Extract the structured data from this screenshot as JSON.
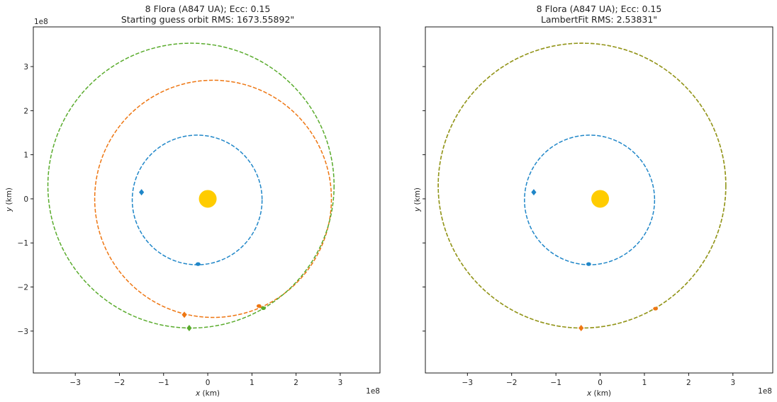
{
  "chart_data": [
    {
      "type": "scatter",
      "title_line1": "8 Flora (A847 UA); Ecc: 0.15",
      "title_line2": "Starting guess orbit RMS: 1673.55892\"",
      "xlabel_var": "x",
      "xlabel_unit": " (km)",
      "ylabel_var": "y",
      "ylabel_unit": " (km)",
      "x_exponent": "1e8",
      "y_exponent": "1e8",
      "xlim": [
        -3.95,
        3.9
      ],
      "ylim": [
        -3.95,
        3.9
      ],
      "xticks": [
        -3,
        -2,
        -1,
        0,
        1,
        2,
        3
      ],
      "xtick_labels": [
        "−3",
        "−2",
        "−1",
        "0",
        "1",
        "2",
        "3"
      ],
      "yticks": [
        -3,
        -2,
        -1,
        0,
        1,
        2,
        3
      ],
      "ytick_labels": [
        "−3",
        "−2",
        "−1",
        "0",
        "1",
        "2",
        "3"
      ],
      "show_ytick_labels": true,
      "grid": false,
      "sun": {
        "x": 0,
        "y": 0,
        "color": "#ffcc00"
      },
      "orbits": [
        {
          "cx": -0.24,
          "cy": -0.025,
          "rx": 1.47,
          "ry": 1.47,
          "color": "#1f86c8"
        },
        {
          "cx": 0.12,
          "cy": 0.0,
          "rx": 2.68,
          "ry": 2.69,
          "color": "#ee7612"
        },
        {
          "cx": -0.38,
          "cy": 0.3,
          "rx": 3.24,
          "ry": 3.23,
          "color": "#59ab2c"
        }
      ],
      "markers": [
        {
          "x": -1.5,
          "y": 0.15,
          "color": "#1f86c8",
          "shape": "diamond"
        },
        {
          "x": -0.22,
          "y": -1.48,
          "color": "#1f86c8",
          "shape": "dot"
        },
        {
          "x": -0.53,
          "y": -2.63,
          "color": "#ee7612",
          "shape": "diamond"
        },
        {
          "x": 1.16,
          "y": -2.43,
          "color": "#ee7612",
          "shape": "dot"
        },
        {
          "x": -0.42,
          "y": -2.93,
          "color": "#59ab2c",
          "shape": "diamond"
        },
        {
          "x": 1.26,
          "y": -2.48,
          "color": "#59ab2c",
          "shape": "dot"
        }
      ]
    },
    {
      "type": "scatter",
      "title_line1": "8 Flora (A847 UA); Ecc: 0.15",
      "title_line2": "LambertFit RMS: 2.53831\"",
      "xlabel_var": "x",
      "xlabel_unit": " (km)",
      "ylabel_var": "y",
      "ylabel_unit": " (km)",
      "x_exponent": "1e8",
      "y_exponent": "",
      "xlim": [
        -3.95,
        3.9
      ],
      "ylim": [
        -3.95,
        3.9
      ],
      "xticks": [
        -3,
        -2,
        -1,
        0,
        1,
        2,
        3
      ],
      "xtick_labels": [
        "−3",
        "−2",
        "−1",
        "0",
        "1",
        "2",
        "3"
      ],
      "yticks": [
        -3,
        -2,
        -1,
        0,
        1,
        2,
        3
      ],
      "ytick_labels": [],
      "show_ytick_labels": false,
      "grid": false,
      "sun": {
        "x": 0,
        "y": 0,
        "color": "#ffcc00"
      },
      "orbits": [
        {
          "cx": -0.24,
          "cy": -0.025,
          "rx": 1.47,
          "ry": 1.47,
          "color": "#1f86c8"
        },
        {
          "cx": -0.41,
          "cy": 0.3,
          "rx": 3.25,
          "ry": 3.23,
          "color": "#ee7612"
        },
        {
          "cx": -0.41,
          "cy": 0.3,
          "rx": 3.25,
          "ry": 3.23,
          "color": "#8a9a1e"
        }
      ],
      "markers": [
        {
          "x": -1.5,
          "y": 0.15,
          "color": "#1f86c8",
          "shape": "diamond"
        },
        {
          "x": -0.26,
          "y": -1.48,
          "color": "#1f86c8",
          "shape": "dot"
        },
        {
          "x": -0.43,
          "y": -2.93,
          "color": "#ee7612",
          "shape": "diamond"
        },
        {
          "x": 1.25,
          "y": -2.49,
          "color": "#ee7612",
          "shape": "dot"
        }
      ]
    }
  ]
}
